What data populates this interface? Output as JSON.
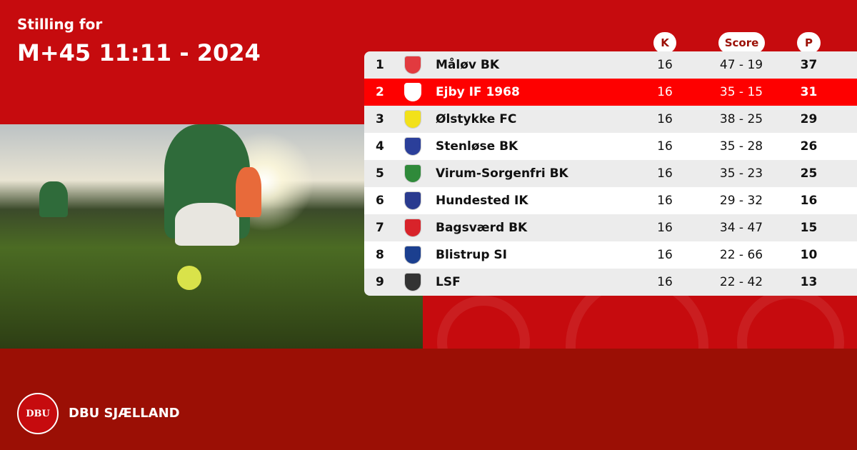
{
  "header": {
    "subtitle": "Stilling for",
    "title": "M+45 11:11 - 2024"
  },
  "columns": {
    "k": "K",
    "score": "Score",
    "p": "P"
  },
  "rows": [
    {
      "pos": "1",
      "team": "Måløv BK",
      "k": "16",
      "score": "47 - 19",
      "p": "37",
      "logo_color": "#e23a3f"
    },
    {
      "pos": "2",
      "team": "Ejby IF 1968",
      "k": "16",
      "score": "35 - 15",
      "p": "31",
      "logo_color": "#ffffff",
      "highlighted": true
    },
    {
      "pos": "3",
      "team": "Ølstykke FC",
      "k": "16",
      "score": "38 - 25",
      "p": "29",
      "logo_color": "#f2e11a"
    },
    {
      "pos": "4",
      "team": "Stenløse BK",
      "k": "16",
      "score": "35 - 28",
      "p": "26",
      "logo_color": "#2b3f9a"
    },
    {
      "pos": "5",
      "team": "Virum-Sorgenfri BK",
      "k": "16",
      "score": "35 - 23",
      "p": "25",
      "logo_color": "#2f8a3a"
    },
    {
      "pos": "6",
      "team": "Hundested IK",
      "k": "16",
      "score": "29 - 32",
      "p": "16",
      "logo_color": "#2a3b8f"
    },
    {
      "pos": "7",
      "team": "Bagsværd BK",
      "k": "16",
      "score": "34 - 47",
      "p": "15",
      "logo_color": "#d8232a"
    },
    {
      "pos": "8",
      "team": "Blistrup SI",
      "k": "16",
      "score": "22 - 66",
      "p": "10",
      "logo_color": "#1b3f8f"
    },
    {
      "pos": "9",
      "team": "LSF",
      "k": "16",
      "score": "22 - 42",
      "p": "13",
      "logo_color": "#333333"
    }
  ],
  "footer": {
    "brand": "DBU SJÆLLAND",
    "logo_text": "DBU"
  },
  "colors": {
    "primary": "#c60b0e",
    "dark": "#9b0f05",
    "highlight": "#fe0000"
  }
}
